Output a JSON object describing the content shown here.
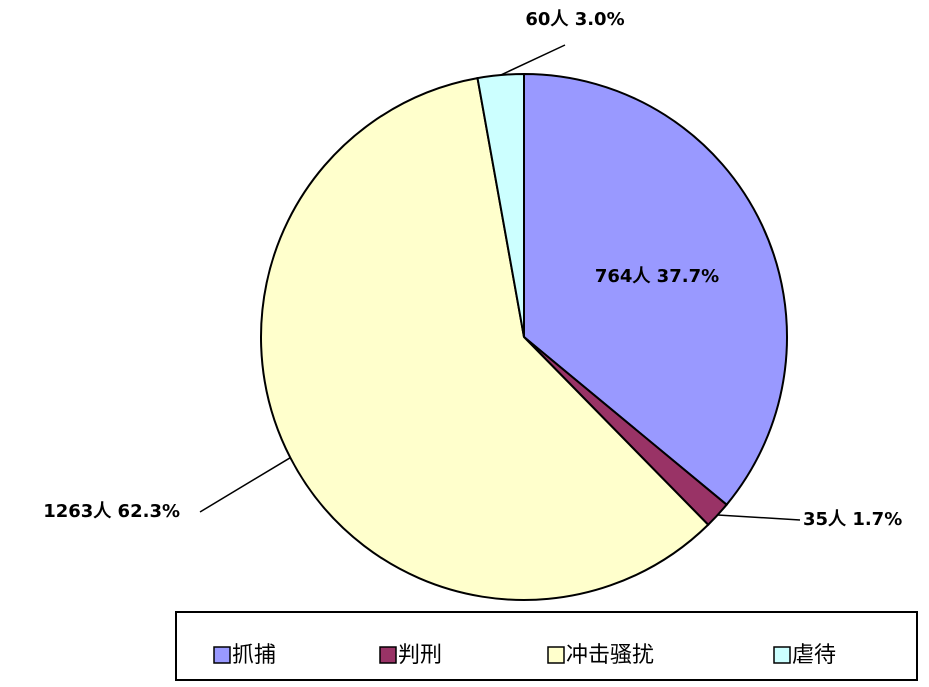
{
  "chart_data": {
    "type": "pie",
    "categories": [
      "抓捕",
      "判刑",
      "冲击骚扰",
      "虐待"
    ],
    "values": [
      764,
      35,
      1263,
      60
    ],
    "value_labels": [
      "764人 37.7%",
      "35人 1.7%",
      "1263人 62.3%",
      "60人 3.0%"
    ],
    "colors": [
      "#9999ff",
      "#993366",
      "#ffffcc",
      "#ccffff"
    ],
    "legend": "bottom"
  }
}
